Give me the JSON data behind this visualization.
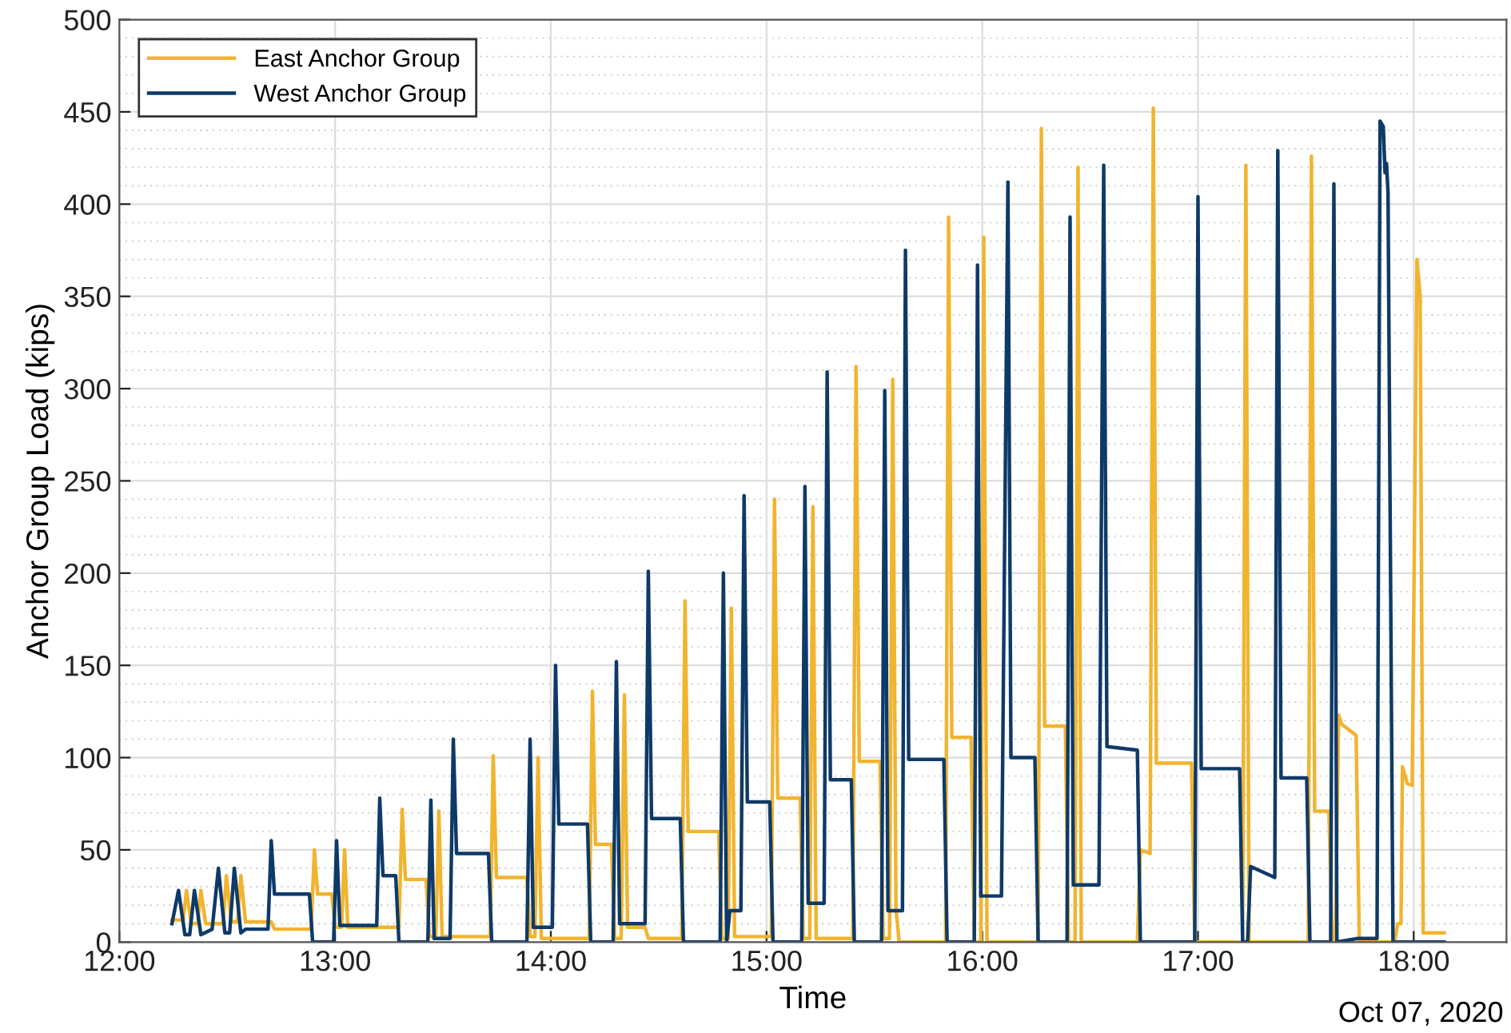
{
  "chart_data": {
    "type": "line",
    "xlabel": "Time",
    "ylabel": "Anchor Group Load (kips)",
    "annotations": [
      "Oct 07, 2020"
    ],
    "xlim": [
      12,
      18.43
    ],
    "xticks": [
      {
        "value": 12,
        "label": "12:00"
      },
      {
        "value": 13,
        "label": "13:00"
      },
      {
        "value": 14,
        "label": "14:00"
      },
      {
        "value": 15,
        "label": "15:00"
      },
      {
        "value": 16,
        "label": "16:00"
      },
      {
        "value": 17,
        "label": "17:00"
      },
      {
        "value": 18,
        "label": "18:00"
      }
    ],
    "ylim": [
      0,
      500
    ],
    "yticks": [
      0,
      50,
      100,
      150,
      200,
      250,
      300,
      350,
      400,
      450,
      500
    ],
    "grid": true,
    "legend": "top left",
    "marker": "none",
    "line_style": "solid",
    "series": [
      {
        "name": "East Anchor Group",
        "color": "#f1b42f",
        "x": [
          12.244,
          12.296,
          12.311,
          12.333,
          12.363,
          12.378,
          12.4,
          12.481,
          12.496,
          12.519,
          12.548,
          12.563,
          12.585,
          12.704,
          12.719,
          12.889,
          12.904,
          12.919,
          12.985,
          13.0,
          13.03,
          13.044,
          13.059,
          13.296,
          13.311,
          13.326,
          13.422,
          13.437,
          13.467,
          13.481,
          13.496,
          13.719,
          13.733,
          13.748,
          13.889,
          13.904,
          13.926,
          13.941,
          13.956,
          14.178,
          14.193,
          14.207,
          14.281,
          14.296,
          14.326,
          14.341,
          14.356,
          14.437,
          14.452,
          14.607,
          14.622,
          14.637,
          14.778,
          14.793,
          14.822,
          14.837,
          14.852,
          15.022,
          15.037,
          15.052,
          15.156,
          15.17,
          15.2,
          15.215,
          15.23,
          15.4,
          15.415,
          15.43,
          15.526,
          15.541,
          15.57,
          15.585,
          15.6,
          15.615,
          15.83,
          15.844,
          15.859,
          15.948,
          15.963,
          15.993,
          16.007,
          16.022,
          16.259,
          16.274,
          16.289,
          16.385,
          16.4,
          16.43,
          16.444,
          16.459,
          16.719,
          16.733,
          16.778,
          16.793,
          16.807,
          16.97,
          16.985,
          17.207,
          17.222,
          17.237,
          17.511,
          17.526,
          17.541,
          17.607,
          17.622,
          17.637,
          17.652,
          17.667,
          17.733,
          17.748,
          17.911,
          17.926,
          17.941,
          17.948,
          17.97,
          17.993,
          18.015,
          18.03,
          18.044,
          18.141
        ],
        "values": [
          12,
          12,
          28,
          10,
          10,
          28,
          10,
          10,
          36,
          11,
          11,
          36,
          11,
          11,
          7,
          7,
          50,
          26,
          26,
          8,
          8,
          50,
          8,
          8,
          72,
          34,
          34,
          3,
          3,
          71,
          3,
          3,
          101,
          35,
          35,
          3,
          3,
          100,
          2,
          2,
          136,
          53,
          53,
          2,
          2,
          134,
          8,
          8,
          2,
          2,
          185,
          60,
          60,
          2,
          2,
          181,
          3,
          3,
          240,
          78,
          78,
          2,
          2,
          236,
          2,
          2,
          312,
          98,
          98,
          2,
          2,
          305,
          18,
          0,
          0,
          393,
          111,
          111,
          0,
          0,
          382,
          0,
          0,
          441,
          117,
          117,
          0,
          0,
          420,
          0,
          0,
          50,
          48,
          452,
          97,
          97,
          0,
          0,
          421,
          0,
          0,
          426,
          71,
          71,
          0,
          0,
          123,
          118,
          112,
          0,
          0,
          10,
          10,
          95,
          86,
          85,
          370,
          350,
          5,
          5
        ]
      },
      {
        "name": "West Anchor Group",
        "color": "#0e3a68",
        "x": [
          12.244,
          12.274,
          12.304,
          12.326,
          12.348,
          12.378,
          12.43,
          12.459,
          12.489,
          12.511,
          12.533,
          12.563,
          12.585,
          12.689,
          12.704,
          12.719,
          12.881,
          12.896,
          12.993,
          13.007,
          13.022,
          13.193,
          13.207,
          13.222,
          13.281,
          13.296,
          13.43,
          13.444,
          13.459,
          13.533,
          13.548,
          13.563,
          13.711,
          13.726,
          13.889,
          13.904,
          13.919,
          14.007,
          14.022,
          14.037,
          14.17,
          14.185,
          14.289,
          14.304,
          14.319,
          14.437,
          14.452,
          14.467,
          14.6,
          14.615,
          14.785,
          14.8,
          14.815,
          14.83,
          14.881,
          14.896,
          14.911,
          15.015,
          15.03,
          15.163,
          15.178,
          15.193,
          15.267,
          15.281,
          15.296,
          15.393,
          15.407,
          15.533,
          15.548,
          15.563,
          15.63,
          15.644,
          15.659,
          15.822,
          15.837,
          15.963,
          15.978,
          15.993,
          16.089,
          16.119,
          16.133,
          16.244,
          16.259,
          16.393,
          16.407,
          16.422,
          16.541,
          16.563,
          16.578,
          16.719,
          16.733,
          16.985,
          17.0,
          17.015,
          17.193,
          17.207,
          17.23,
          17.244,
          17.356,
          17.37,
          17.385,
          17.504,
          17.519,
          17.615,
          17.63,
          17.644,
          17.741,
          17.83,
          17.844,
          17.859,
          17.867,
          17.874,
          17.881,
          17.904,
          18.141
        ],
        "values": [
          10,
          28,
          4,
          4,
          28,
          4,
          7,
          40,
          5,
          5,
          40,
          5,
          7,
          7,
          55,
          26,
          26,
          0,
          0,
          55,
          9,
          9,
          78,
          36,
          36,
          0,
          0,
          77,
          2,
          2,
          110,
          48,
          48,
          0,
          0,
          110,
          8,
          8,
          150,
          64,
          64,
          0,
          0,
          152,
          10,
          10,
          201,
          67,
          67,
          0,
          0,
          200,
          0,
          17,
          17,
          242,
          76,
          76,
          0,
          0,
          247,
          21,
          21,
          309,
          88,
          88,
          0,
          0,
          299,
          17,
          17,
          375,
          99,
          99,
          0,
          0,
          367,
          25,
          25,
          412,
          100,
          100,
          0,
          0,
          393,
          31,
          31,
          421,
          106,
          104,
          0,
          0,
          404,
          94,
          94,
          0,
          0,
          41,
          35,
          429,
          89,
          89,
          0,
          0,
          411,
          0,
          2,
          2,
          445,
          442,
          417,
          422,
          406,
          0,
          0
        ]
      }
    ]
  }
}
